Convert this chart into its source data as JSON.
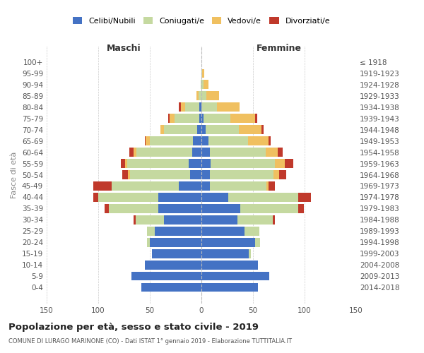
{
  "age_groups": [
    "0-4",
    "5-9",
    "10-14",
    "15-19",
    "20-24",
    "25-29",
    "30-34",
    "35-39",
    "40-44",
    "45-49",
    "50-54",
    "55-59",
    "60-64",
    "65-69",
    "70-74",
    "75-79",
    "80-84",
    "85-89",
    "90-94",
    "95-99",
    "100+"
  ],
  "birth_years": [
    "2014-2018",
    "2009-2013",
    "2004-2008",
    "1999-2003",
    "1994-1998",
    "1989-1993",
    "1984-1988",
    "1979-1983",
    "1974-1978",
    "1969-1973",
    "1964-1968",
    "1959-1963",
    "1954-1958",
    "1949-1953",
    "1944-1948",
    "1939-1943",
    "1934-1938",
    "1929-1933",
    "1924-1928",
    "1919-1923",
    "≤ 1918"
  ],
  "colors": {
    "celibe": "#4472c4",
    "coniugato": "#c5d9a0",
    "vedovo": "#f0c060",
    "divorziato": "#c0392b"
  },
  "maschi": {
    "celibe": [
      58,
      68,
      55,
      48,
      50,
      45,
      36,
      42,
      42,
      22,
      11,
      12,
      9,
      8,
      4,
      2,
      2,
      0,
      0,
      0,
      0
    ],
    "coniugato": [
      0,
      0,
      0,
      0,
      3,
      8,
      28,
      48,
      58,
      65,
      58,
      60,
      54,
      42,
      32,
      24,
      14,
      3,
      1,
      0,
      0
    ],
    "vedovo": [
      0,
      0,
      0,
      0,
      0,
      0,
      0,
      0,
      0,
      0,
      2,
      2,
      3,
      4,
      4,
      5,
      4,
      2,
      0,
      0,
      0
    ],
    "divorziato": [
      0,
      0,
      0,
      0,
      0,
      0,
      2,
      4,
      5,
      18,
      6,
      4,
      4,
      1,
      0,
      1,
      2,
      0,
      0,
      0,
      0
    ]
  },
  "femmine": {
    "nubile": [
      55,
      66,
      55,
      46,
      52,
      42,
      35,
      38,
      26,
      8,
      8,
      9,
      8,
      7,
      4,
      2,
      0,
      0,
      0,
      0,
      0
    ],
    "coniugata": [
      0,
      0,
      0,
      2,
      5,
      14,
      34,
      56,
      68,
      55,
      62,
      62,
      54,
      38,
      32,
      26,
      15,
      5,
      2,
      1,
      0
    ],
    "vedova": [
      0,
      0,
      0,
      0,
      0,
      0,
      0,
      0,
      0,
      2,
      5,
      10,
      12,
      20,
      22,
      24,
      22,
      12,
      5,
      2,
      0
    ],
    "divorziata": [
      0,
      0,
      0,
      0,
      0,
      0,
      2,
      5,
      12,
      6,
      7,
      8,
      5,
      2,
      2,
      2,
      0,
      0,
      0,
      0,
      0
    ]
  },
  "xlim": 150,
  "title": "Popolazione per età, sesso e stato civile - 2019",
  "subtitle": "COMUNE DI LURAGO MARINONE (CO) - Dati ISTAT 1° gennaio 2019 - Elaborazione TUTTITALIA.IT",
  "ylabel_left": "Fasce di età",
  "legend_labels": [
    "Celibi/Nubili",
    "Coniugati/e",
    "Vedovi/e",
    "Divorziati/e"
  ],
  "header_maschi": "Maschi",
  "header_femmine": "Femmine",
  "bg_color": "#ffffff",
  "grid_color": "#cccccc",
  "tick_color": "#555555",
  "header_color": "#333333",
  "axis_label_color": "#888888",
  "title_color": "#222222",
  "subtitle_color": "#555555"
}
